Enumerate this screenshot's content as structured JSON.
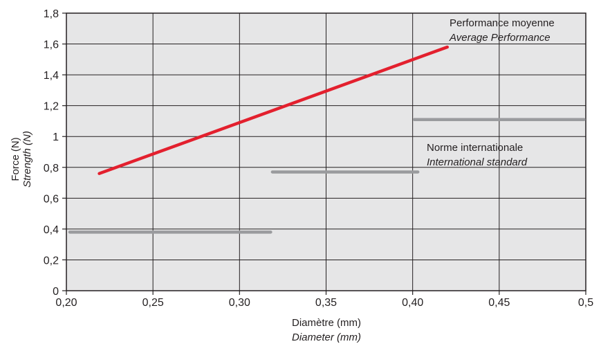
{
  "chart_data": {
    "type": "line",
    "xlabel": "Diamètre (mm)",
    "xlabel_en": "Diameter (mm)",
    "ylabel": "Force (N)",
    "ylabel_en": "Strength (N)",
    "xlim": [
      0.2,
      0.5
    ],
    "ylim": [
      0,
      1.8
    ],
    "x_ticks": [
      0.2,
      0.25,
      0.3,
      0.35,
      0.4,
      0.45,
      0.5
    ],
    "x_tick_labels": [
      "0,20",
      "0,25",
      "0,30",
      "0,35",
      "0,40",
      "0,45",
      "0,5"
    ],
    "y_ticks": [
      0,
      0.2,
      0.4,
      0.6,
      0.8,
      1.0,
      1.2,
      1.4,
      1.6,
      1.8
    ],
    "y_tick_labels": [
      "0",
      "0,2",
      "0,4",
      "0,6",
      "0,8",
      "1",
      "1,2",
      "1,4",
      "1,6",
      "1,8"
    ],
    "grid": true,
    "background": "#e6e6e7",
    "series": [
      {
        "name": "Performance moyenne",
        "name_en": "Average Performance",
        "color": "#e3202e",
        "points": [
          [
            0.219,
            0.76
          ],
          [
            0.42,
            1.58
          ]
        ]
      },
      {
        "name": "Norme internationale",
        "name_en": "International standard",
        "color": "#9a9b9e",
        "segments": [
          [
            [
              0.202,
              0.38
            ],
            [
              0.318,
              0.38
            ]
          ],
          [
            [
              0.319,
              0.77
            ],
            [
              0.403,
              0.77
            ]
          ],
          [
            [
              0.401,
              1.11
            ],
            [
              0.499,
              1.11
            ]
          ]
        ]
      }
    ]
  }
}
